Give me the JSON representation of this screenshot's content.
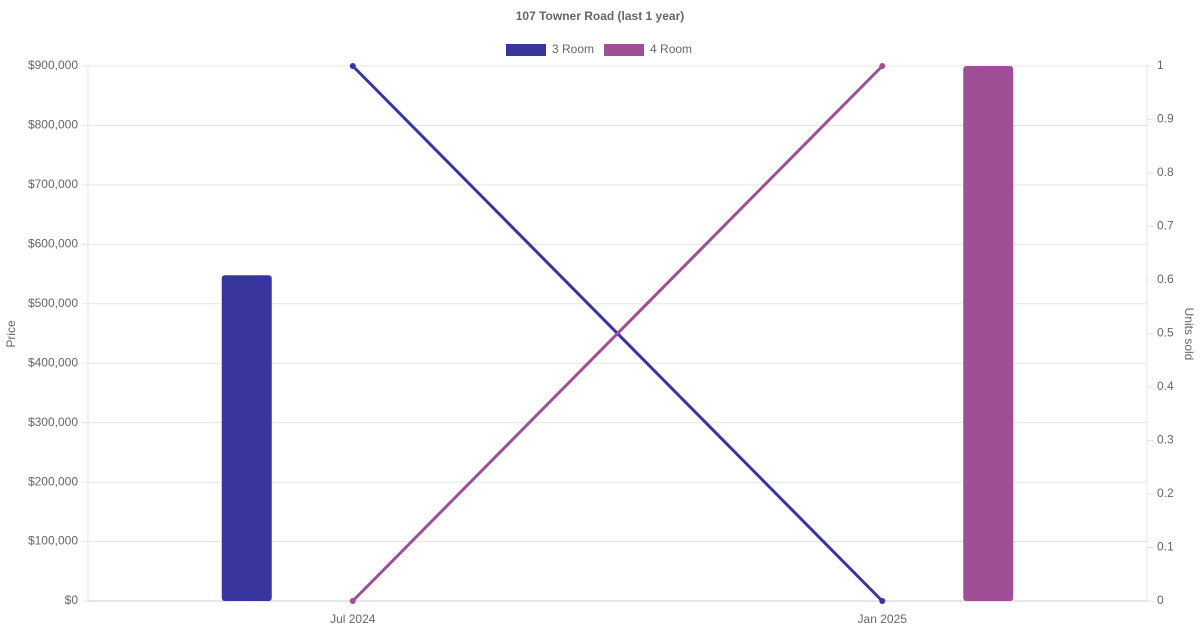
{
  "chart_data": {
    "type": "bar-line",
    "title": "107 Towner Road (last 1 year)",
    "categories": [
      "Jul 2024",
      "Jan 2025"
    ],
    "series": [
      {
        "name": "3 Room",
        "color": "#39359f",
        "values": [
          548000,
          null
        ],
        "units": [
          1,
          0
        ]
      },
      {
        "name": "4 Room",
        "color": "#9e4f96",
        "values": [
          null,
          900000
        ],
        "units": [
          0,
          1
        ]
      }
    ],
    "ylabel": "Price",
    "y2label": "Units sold",
    "ylim": [
      0,
      900000
    ],
    "yticks": [
      {
        "value": 0,
        "label": "$0"
      },
      {
        "value": 100000,
        "label": "$100,000"
      },
      {
        "value": 200000,
        "label": "$200,000"
      },
      {
        "value": 300000,
        "label": "$300,000"
      },
      {
        "value": 400000,
        "label": "$400,000"
      },
      {
        "value": 500000,
        "label": "$500,000"
      },
      {
        "value": 600000,
        "label": "$600,000"
      },
      {
        "value": 700000,
        "label": "$700,000"
      },
      {
        "value": 800000,
        "label": "$800,000"
      },
      {
        "value": 900000,
        "label": "$900,000"
      }
    ],
    "y2lim": [
      0,
      1
    ],
    "y2ticks": [
      0,
      0.1,
      0.2,
      0.3,
      0.4,
      0.5,
      0.6,
      0.7,
      0.8,
      0.9,
      1
    ],
    "grid": true,
    "legend": "top"
  }
}
